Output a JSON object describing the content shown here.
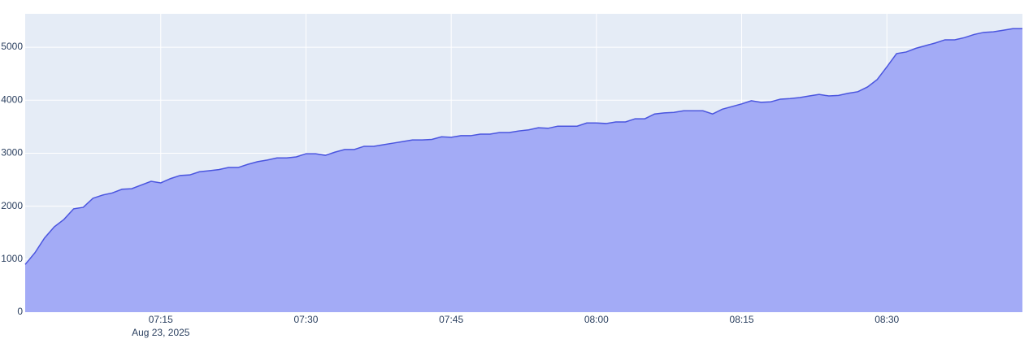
{
  "chart_data": {
    "type": "area",
    "x": [
      "2025-08-23T07:01",
      "2025-08-23T07:02",
      "2025-08-23T07:03",
      "2025-08-23T07:04",
      "2025-08-23T07:05",
      "2025-08-23T07:06",
      "2025-08-23T07:07",
      "2025-08-23T07:08",
      "2025-08-23T07:09",
      "2025-08-23T07:10",
      "2025-08-23T07:11",
      "2025-08-23T07:12",
      "2025-08-23T07:13",
      "2025-08-23T07:14",
      "2025-08-23T07:15",
      "2025-08-23T07:16",
      "2025-08-23T07:17",
      "2025-08-23T07:18",
      "2025-08-23T07:19",
      "2025-08-23T07:20",
      "2025-08-23T07:21",
      "2025-08-23T07:22",
      "2025-08-23T07:23",
      "2025-08-23T07:24",
      "2025-08-23T07:25",
      "2025-08-23T07:26",
      "2025-08-23T07:27",
      "2025-08-23T07:28",
      "2025-08-23T07:29",
      "2025-08-23T07:30",
      "2025-08-23T07:31",
      "2025-08-23T07:32",
      "2025-08-23T07:33",
      "2025-08-23T07:34",
      "2025-08-23T07:35",
      "2025-08-23T07:36",
      "2025-08-23T07:37",
      "2025-08-23T07:38",
      "2025-08-23T07:39",
      "2025-08-23T07:40",
      "2025-08-23T07:41",
      "2025-08-23T07:42",
      "2025-08-23T07:43",
      "2025-08-23T07:44",
      "2025-08-23T07:45",
      "2025-08-23T07:46",
      "2025-08-23T07:47",
      "2025-08-23T07:48",
      "2025-08-23T07:49",
      "2025-08-23T07:50",
      "2025-08-23T07:51",
      "2025-08-23T07:52",
      "2025-08-23T07:53",
      "2025-08-23T07:54",
      "2025-08-23T07:55",
      "2025-08-23T07:56",
      "2025-08-23T07:57",
      "2025-08-23T07:58",
      "2025-08-23T07:59",
      "2025-08-23T08:00",
      "2025-08-23T08:01",
      "2025-08-23T08:02",
      "2025-08-23T08:03",
      "2025-08-23T08:04",
      "2025-08-23T08:05",
      "2025-08-23T08:06",
      "2025-08-23T08:07",
      "2025-08-23T08:08",
      "2025-08-23T08:09",
      "2025-08-23T08:10",
      "2025-08-23T08:11",
      "2025-08-23T08:12",
      "2025-08-23T08:13",
      "2025-08-23T08:14",
      "2025-08-23T08:15",
      "2025-08-23T08:16",
      "2025-08-23T08:17",
      "2025-08-23T08:18",
      "2025-08-23T08:19",
      "2025-08-23T08:20",
      "2025-08-23T08:21",
      "2025-08-23T08:22",
      "2025-08-23T08:23",
      "2025-08-23T08:24",
      "2025-08-23T08:25",
      "2025-08-23T08:26",
      "2025-08-23T08:27",
      "2025-08-23T08:28",
      "2025-08-23T08:29",
      "2025-08-23T08:30",
      "2025-08-23T08:31",
      "2025-08-23T08:32",
      "2025-08-23T08:33",
      "2025-08-23T08:34",
      "2025-08-23T08:35",
      "2025-08-23T08:36",
      "2025-08-23T08:37",
      "2025-08-23T08:38",
      "2025-08-23T08:39",
      "2025-08-23T08:40",
      "2025-08-23T08:41",
      "2025-08-23T08:42",
      "2025-08-23T08:43",
      "2025-08-23T08:44"
    ],
    "values": [
      900,
      1120,
      1400,
      1610,
      1750,
      1950,
      1980,
      2150,
      2210,
      2250,
      2320,
      2330,
      2400,
      2470,
      2440,
      2520,
      2580,
      2590,
      2650,
      2670,
      2690,
      2730,
      2730,
      2790,
      2840,
      2870,
      2910,
      2910,
      2930,
      2990,
      2990,
      2960,
      3020,
      3070,
      3070,
      3130,
      3130,
      3160,
      3190,
      3220,
      3250,
      3250,
      3260,
      3310,
      3300,
      3330,
      3330,
      3360,
      3360,
      3390,
      3390,
      3420,
      3440,
      3480,
      3470,
      3510,
      3510,
      3510,
      3570,
      3570,
      3560,
      3590,
      3590,
      3650,
      3650,
      3740,
      3760,
      3770,
      3800,
      3800,
      3800,
      3740,
      3830,
      3880,
      3930,
      3990,
      3960,
      3970,
      4020,
      4030,
      4050,
      4080,
      4110,
      4080,
      4090,
      4130,
      4160,
      4250,
      4390,
      4630,
      4880,
      4910,
      4980,
      5030,
      5080,
      5140,
      5140,
      5180,
      5240,
      5280,
      5290,
      5320,
      5350,
      5350
    ],
    "line_color": "#4a55df",
    "fill_color": "#a3abf6",
    "xlim": [
      "2025-08-23T07:01",
      "2025-08-23T08:44"
    ],
    "xticks": [
      {
        "value": "2025-08-23T07:15",
        "label": "07:15"
      },
      {
        "value": "2025-08-23T07:30",
        "label": "07:30"
      },
      {
        "value": "2025-08-23T07:45",
        "label": "07:45"
      },
      {
        "value": "2025-08-23T08:00",
        "label": "08:00"
      },
      {
        "value": "2025-08-23T08:15",
        "label": "08:15"
      },
      {
        "value": "2025-08-23T08:30",
        "label": "08:30"
      }
    ],
    "x_date_label": "Aug 23, 2025",
    "ylim": [
      0,
      5630
    ],
    "yticks": [
      0,
      1000,
      2000,
      3000,
      4000,
      5000
    ],
    "grid": true
  }
}
